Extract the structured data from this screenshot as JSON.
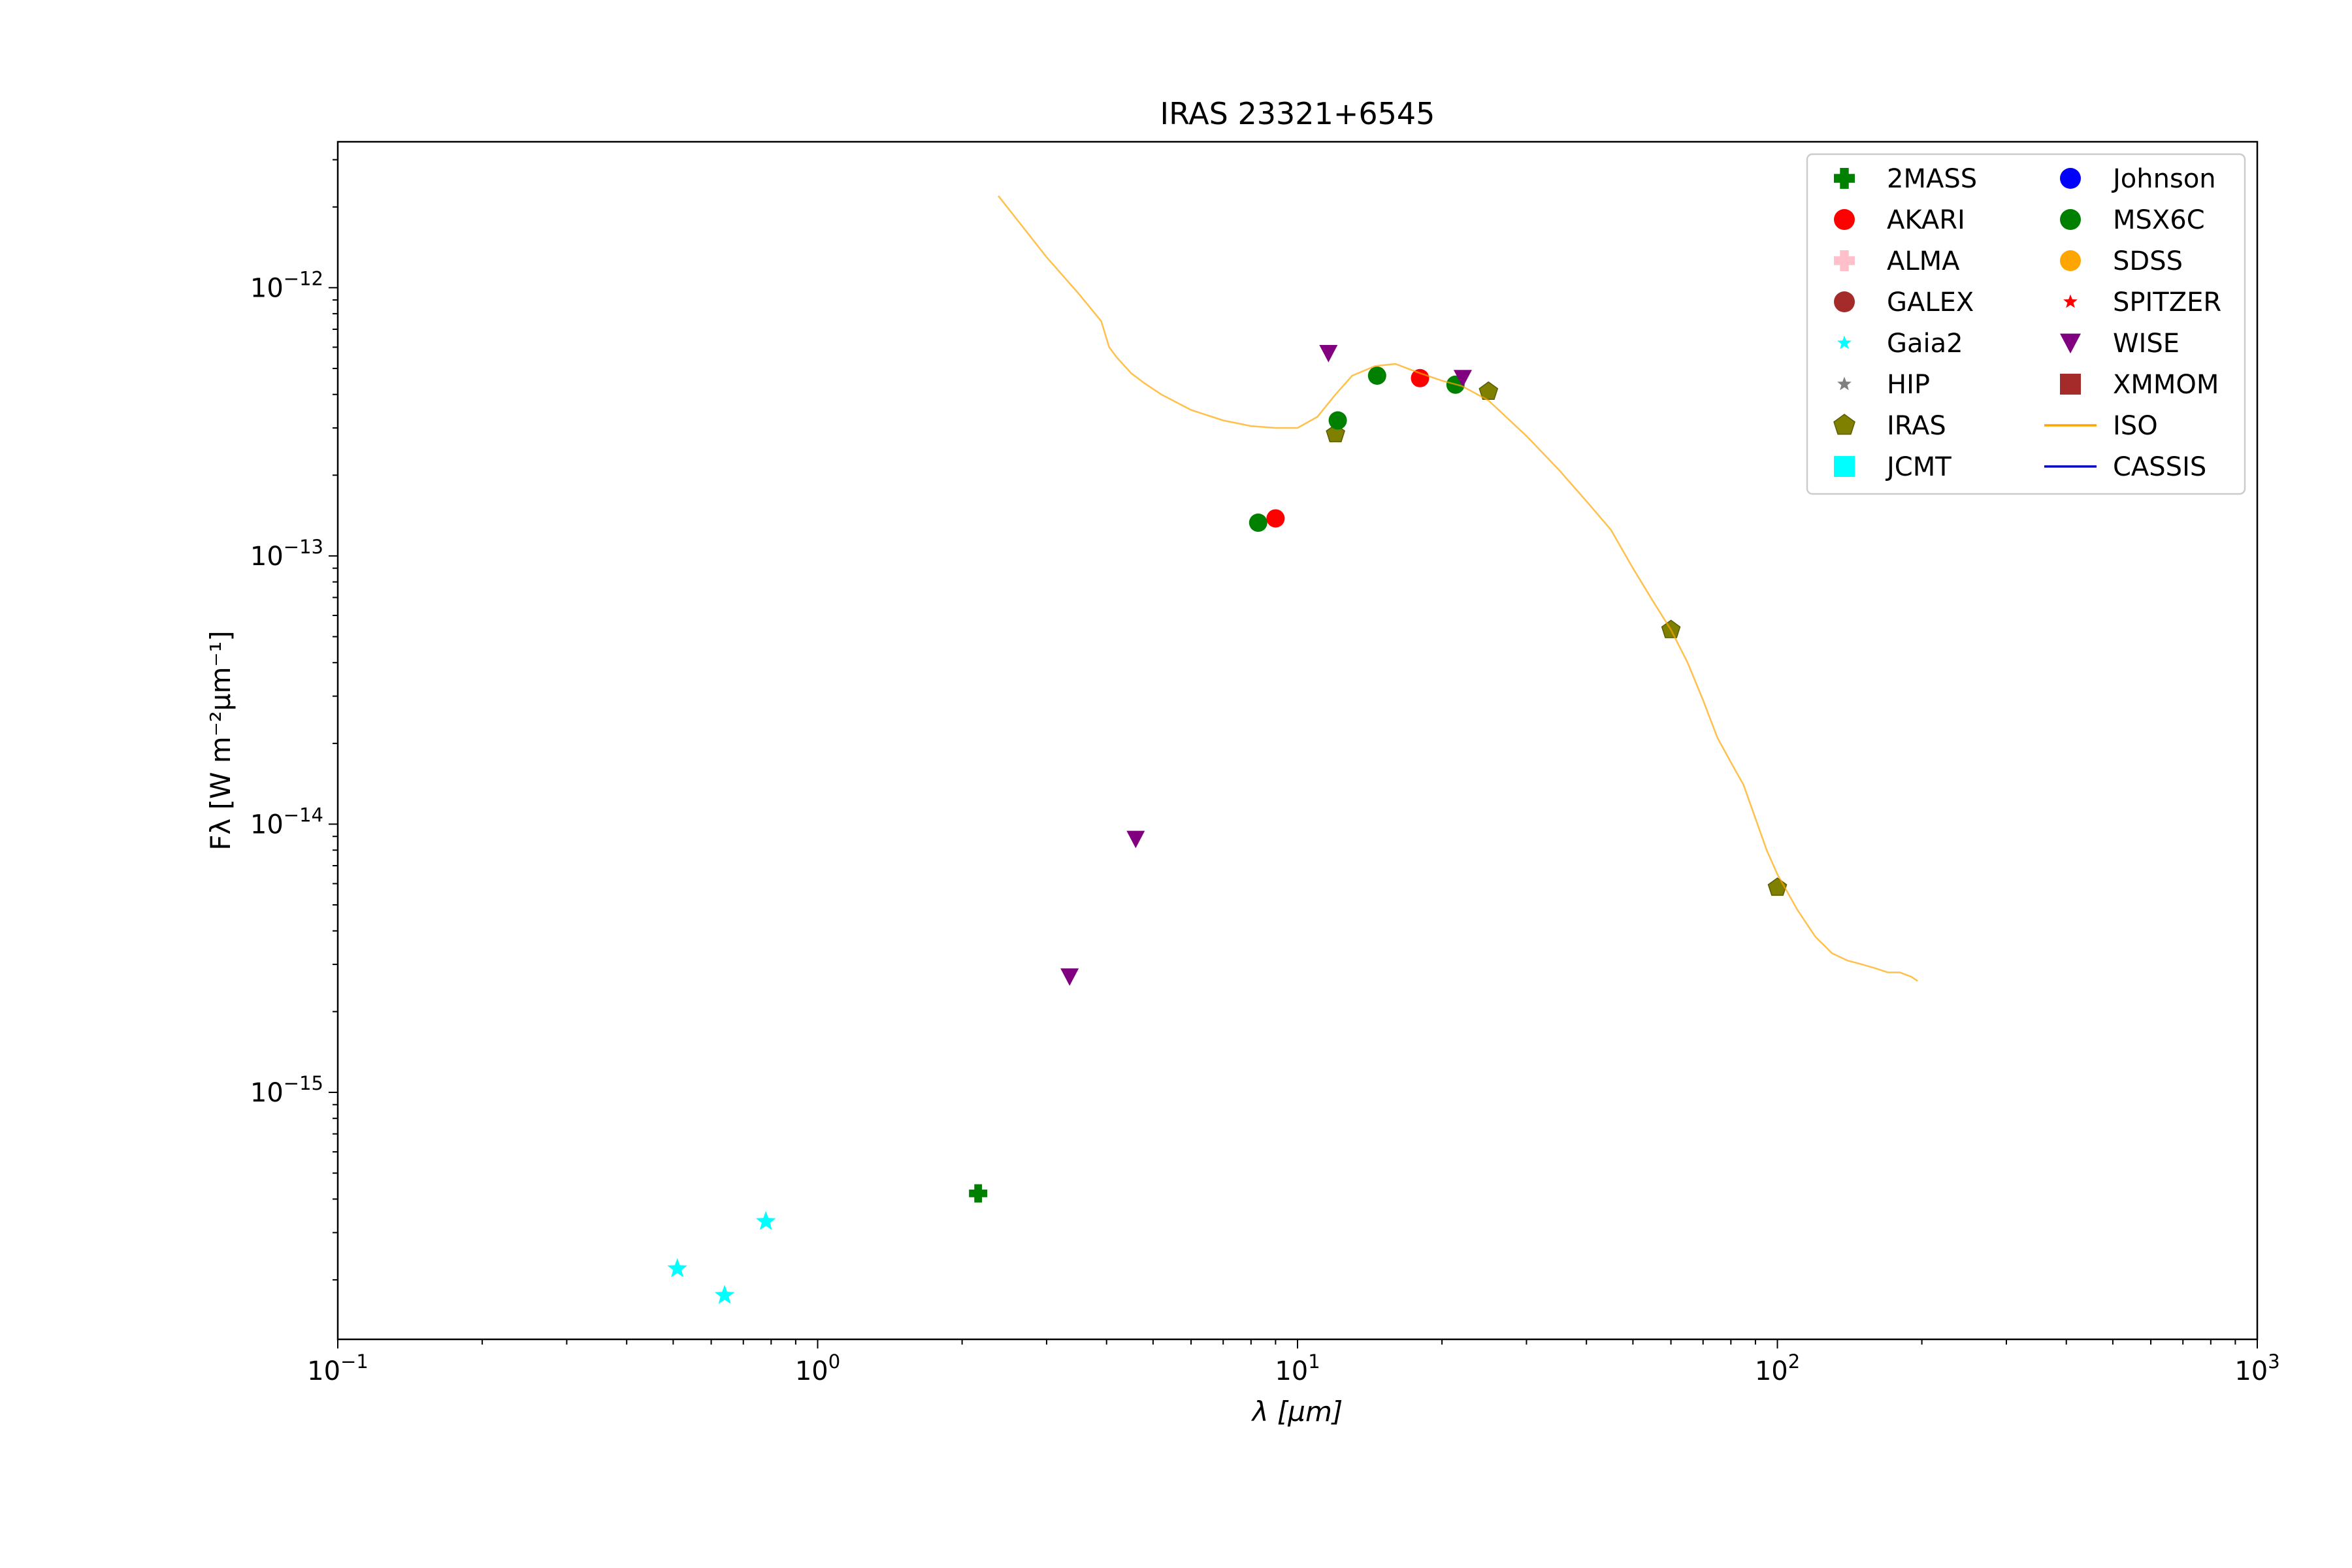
{
  "chart_data": {
    "type": "scatter",
    "title": "IRAS 23321+6545",
    "xlabel": "λ [μm]",
    "ylabel": "Fλ [W m⁻²μm⁻¹]",
    "xscale": "log",
    "yscale": "log",
    "xlim": [
      0.1,
      1000
    ],
    "ylim": [
      1.2e-16,
      3.5e-12
    ],
    "grid": false,
    "legend_position": "top-right",
    "x_ticks": [
      {
        "value": 0.1,
        "base": "10",
        "exp": "−1"
      },
      {
        "value": 1,
        "base": "10",
        "exp": "0"
      },
      {
        "value": 10,
        "base": "10",
        "exp": "1"
      },
      {
        "value": 100,
        "base": "10",
        "exp": "2"
      },
      {
        "value": 1000,
        "base": "10",
        "exp": "3"
      }
    ],
    "y_ticks": [
      {
        "value": 1e-15,
        "base": "10",
        "exp": "−15"
      },
      {
        "value": 1e-14,
        "base": "10",
        "exp": "−14"
      },
      {
        "value": 1e-13,
        "base": "10",
        "exp": "−13"
      },
      {
        "value": 1e-12,
        "base": "10",
        "exp": "−12"
      }
    ],
    "series": [
      {
        "name": "2MASS",
        "marker": "plus",
        "color": "#008000",
        "points": [
          [
            2.16,
            4.2e-16
          ]
        ]
      },
      {
        "name": "AKARI",
        "marker": "circle",
        "color": "#ff0000",
        "points": [
          [
            9.0,
            1.38e-13
          ],
          [
            18.0,
            4.6e-13
          ]
        ]
      },
      {
        "name": "ALMA",
        "marker": "plus",
        "color": "#ffc0cb",
        "points": []
      },
      {
        "name": "GALEX",
        "marker": "circle",
        "color": "#a52a2a",
        "points": []
      },
      {
        "name": "Gaia2",
        "marker": "star",
        "color": "#00ffff",
        "points": [
          [
            0.51,
            2.2e-16
          ],
          [
            0.64,
            1.75e-16
          ],
          [
            0.78,
            3.3e-16
          ]
        ]
      },
      {
        "name": "HIP",
        "marker": "star",
        "color": "#808080",
        "points": []
      },
      {
        "name": "IRAS",
        "marker": "pentagon",
        "color": "#808000",
        "points": [
          [
            12.0,
            2.85e-13
          ],
          [
            25.0,
            4.1e-13
          ],
          [
            60.0,
            5.3e-14
          ],
          [
            100.0,
            5.8e-15
          ]
        ]
      },
      {
        "name": "JCMT",
        "marker": "square",
        "color": "#00ffff",
        "points": []
      },
      {
        "name": "Johnson",
        "marker": "circle",
        "color": "#0000ff",
        "points": []
      },
      {
        "name": "MSX6C",
        "marker": "circle",
        "color": "#008000",
        "points": [
          [
            8.28,
            1.33e-13
          ],
          [
            12.13,
            3.2e-13
          ],
          [
            14.65,
            4.7e-13
          ],
          [
            21.34,
            4.35e-13
          ]
        ]
      },
      {
        "name": "SDSS",
        "marker": "circle",
        "color": "#ffa500",
        "points": []
      },
      {
        "name": "SPITZER",
        "marker": "star",
        "color": "#ff0000",
        "points": []
      },
      {
        "name": "WISE",
        "marker": "triangle_down",
        "color": "#800080",
        "points": [
          [
            3.35,
            2.7e-15
          ],
          [
            4.6,
            8.8e-15
          ],
          [
            11.6,
            5.7e-13
          ],
          [
            22.1,
            4.6e-13
          ]
        ]
      },
      {
        "name": "XMMOM",
        "marker": "square",
        "color": "#a52a2a",
        "points": []
      },
      {
        "name": "ISO",
        "marker": "line",
        "color": "#ffa500",
        "points": [
          [
            2.38,
            2.2e-12
          ],
          [
            2.6,
            1.8e-12
          ],
          [
            3.0,
            1.3e-12
          ],
          [
            3.5,
            9.5e-13
          ],
          [
            3.9,
            7.5e-13
          ],
          [
            4.05,
            6e-13
          ],
          [
            4.2,
            5.5e-13
          ],
          [
            4.5,
            4.8e-13
          ],
          [
            4.8,
            4.4e-13
          ],
          [
            5.2,
            4e-13
          ],
          [
            6.0,
            3.5e-13
          ],
          [
            7.0,
            3.2e-13
          ],
          [
            8.0,
            3.05e-13
          ],
          [
            9.0,
            3e-13
          ],
          [
            10.0,
            3e-13
          ],
          [
            11.0,
            3.3e-13
          ],
          [
            12.0,
            4e-13
          ],
          [
            13.0,
            4.7e-13
          ],
          [
            14.5,
            5.1e-13
          ],
          [
            16.0,
            5.2e-13
          ],
          [
            18.0,
            4.8e-13
          ],
          [
            20.0,
            4.5e-13
          ],
          [
            22.0,
            4.3e-13
          ],
          [
            25.0,
            3.8e-13
          ],
          [
            30.0,
            2.8e-13
          ],
          [
            35.0,
            2.1e-13
          ],
          [
            40.0,
            1.6e-13
          ],
          [
            45.0,
            1.25e-13
          ],
          [
            50.0,
            9e-14
          ],
          [
            55.0,
            6.8e-14
          ],
          [
            60.0,
            5.3e-14
          ],
          [
            65.0,
            4e-14
          ],
          [
            70.0,
            2.9e-14
          ],
          [
            75.0,
            2.1e-14
          ],
          [
            80.0,
            1.7e-14
          ],
          [
            85.0,
            1.4e-14
          ],
          [
            90.0,
            1.05e-14
          ],
          [
            95.0,
            8e-15
          ],
          [
            100.0,
            6.5e-15
          ],
          [
            110.0,
            4.8e-15
          ],
          [
            120.0,
            3.8e-15
          ],
          [
            130.0,
            3.3e-15
          ],
          [
            140.0,
            3.1e-15
          ],
          [
            150.0,
            3e-15
          ],
          [
            160.0,
            2.9e-15
          ],
          [
            170.0,
            2.8e-15
          ],
          [
            180.0,
            2.8e-15
          ],
          [
            190.0,
            2.7e-15
          ],
          [
            196.0,
            2.6e-15
          ]
        ]
      },
      {
        "name": "CASSIS",
        "marker": "line",
        "color": "#0000cd",
        "points": []
      }
    ]
  }
}
